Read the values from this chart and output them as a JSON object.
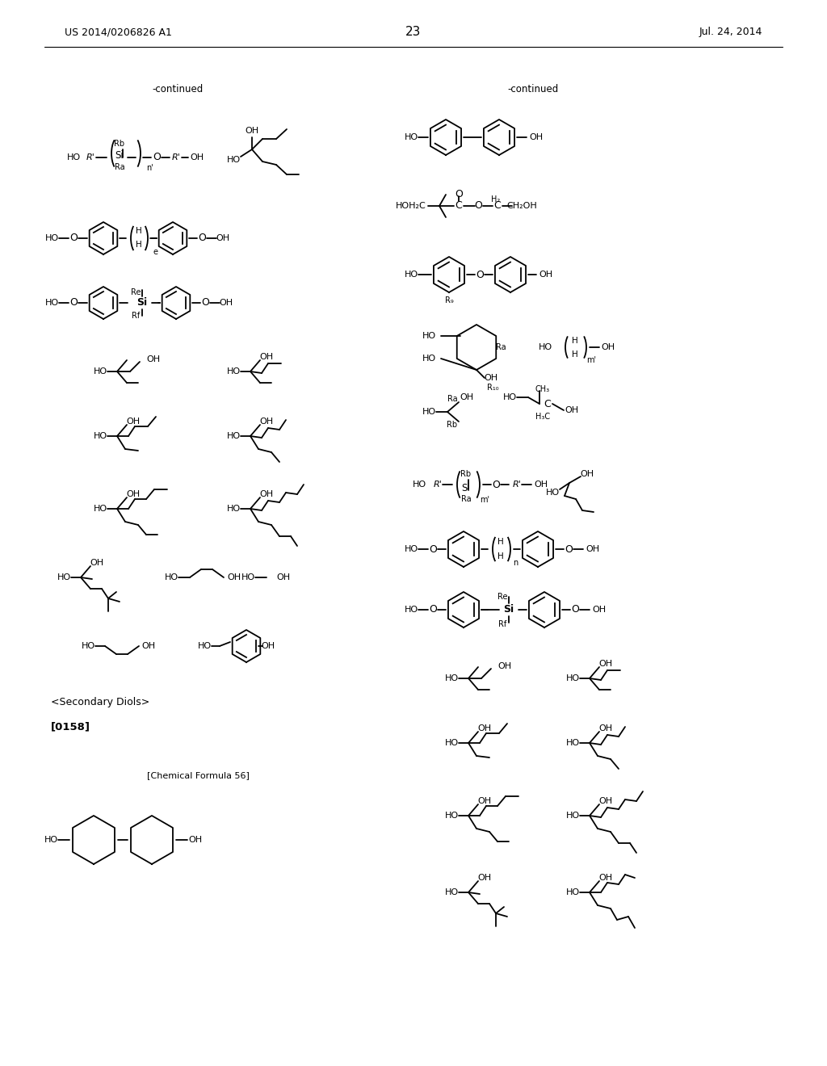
{
  "page_number": "23",
  "patent_left": "US 2014/0206826 A1",
  "patent_right": "Jul. 24, 2014",
  "background_color": "#ffffff",
  "figsize": [
    10.24,
    13.2
  ],
  "dpi": 100
}
